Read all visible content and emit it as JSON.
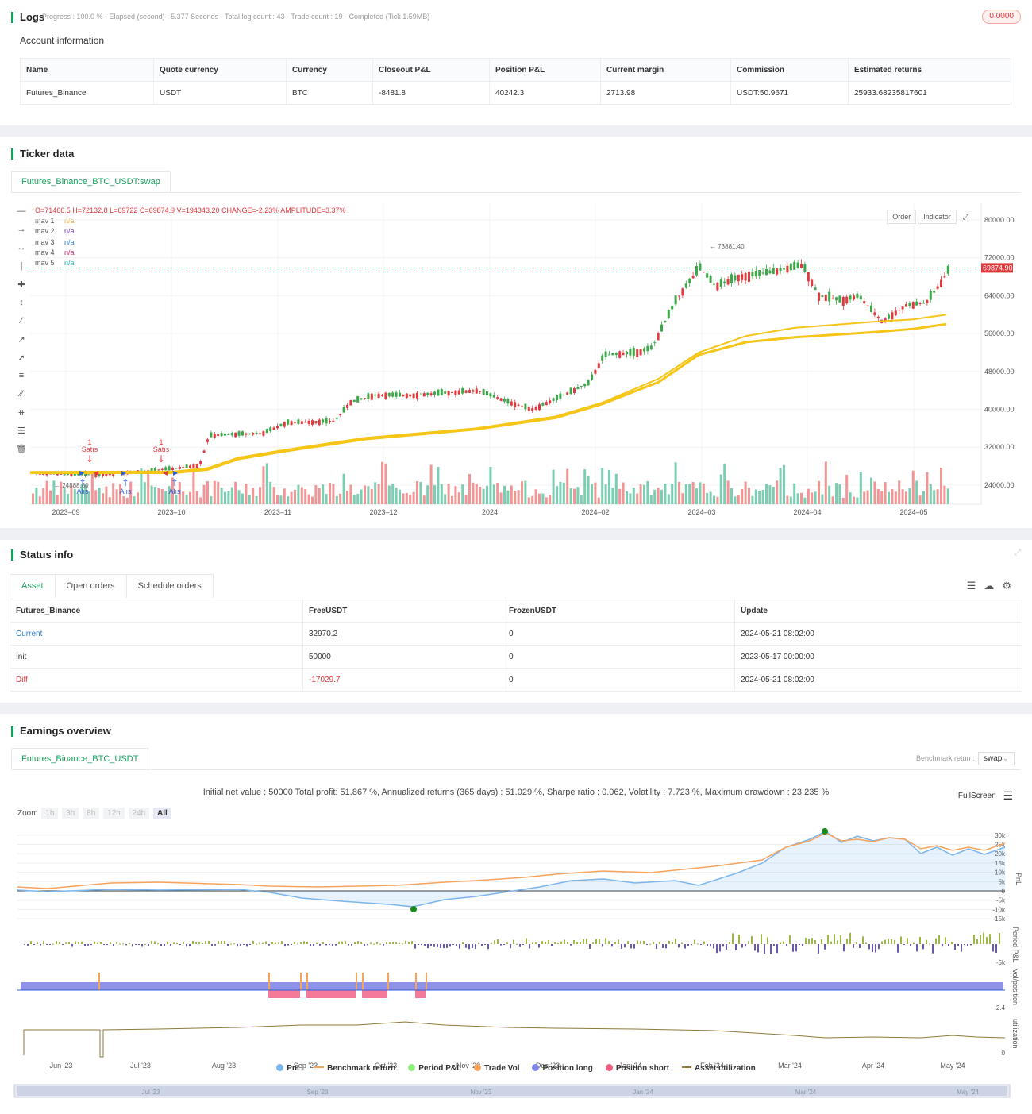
{
  "logs": {
    "title": "Logs",
    "progress": "Progress : 100.0 % - Elapsed (second) : 5.377  Seconds - Total log count : 43 - Trade count : 19 - Completed (Tick 1.59MB)",
    "badge": "0.0000",
    "account_title": "Account information",
    "columns": [
      "Name",
      "Quote currency",
      "Currency",
      "Closeout P&L",
      "Position P&L",
      "Current margin",
      "Commission",
      "Estimated returns"
    ],
    "row": [
      "Futures_Binance",
      "USDT",
      "BTC",
      "-8481.8",
      "40242.3",
      "2713.98",
      "USDT:50.9671",
      "25933.68235817601"
    ]
  },
  "ticker": {
    "title": "Ticker data",
    "tab": "Futures_Binance_BTC_USDT:swap",
    "ohlc": "O=71466.5 H=72132.8 L=69722 C=69874.9 V=194343.20 CHANGE=-2.23% AMPLITUDE=3.37%",
    "mav": [
      {
        "label": "mav 1",
        "value": "n/a",
        "color": "#f5a623"
      },
      {
        "label": "mav 2",
        "value": "n/a",
        "color": "#7b3fbf"
      },
      {
        "label": "mav 3",
        "value": "n/a",
        "color": "#2f7ed8"
      },
      {
        "label": "mav 4",
        "value": "n/a",
        "color": "#d6266c"
      },
      {
        "label": "mav 5",
        "value": "n/a",
        "color": "#22b5b5"
      }
    ],
    "buttons": [
      "Order",
      "Indicator"
    ],
    "price_ticks": [
      "80000.00",
      "72000.00",
      "64000.00",
      "56000.00",
      "48000.00",
      "40000.00",
      "32000.00",
      "24000.00"
    ],
    "date_ticks": [
      "2023–09",
      "2023–10",
      "2023–11",
      "2023–12",
      "2024",
      "2024–02",
      "2024–03",
      "2024–04",
      "2024–05"
    ],
    "last_price": "69874.90",
    "high_label": "73881.40",
    "low_label": "24888.80",
    "sell_label": "Satıs",
    "buy_label": "Alıs",
    "signal_count": "1"
  },
  "status": {
    "title": "Status info",
    "tabs": [
      "Asset",
      "Open orders",
      "Schedule orders"
    ],
    "columns": [
      "Futures_Binance",
      "FreeUSDT",
      "FrozenUSDT",
      "Update"
    ],
    "rows": [
      [
        "Current",
        "32970.2",
        "0",
        "2024-05-21 08:02:00"
      ],
      [
        "Init",
        "50000",
        "0",
        "2023-05-17 00:00:00"
      ],
      [
        "Diff",
        "-17029.7",
        "0",
        "2024-05-21 08:02:00"
      ]
    ]
  },
  "earnings": {
    "title": "Earnings overview",
    "tab": "Futures_Binance_BTC_USDT",
    "benchmark_label": "Benchmark return:",
    "benchmark_value": "swap",
    "summary": "Initial net value : 50000 Total profit: 51.867 %, Annualized returns (365 days) : 51.029 %, Sharpe ratio : 0.062, Volatility : 7.723 %, Maximum drawdown : 23.235 %",
    "zoom_label": "Zoom",
    "zoom_options": [
      "1h",
      "3h",
      "8h",
      "12h",
      "24h",
      "All"
    ],
    "fullscreen": "FullScreen",
    "pnl_ticks": [
      "30k",
      "25k",
      "20k",
      "15k",
      "10k",
      "5k",
      "0",
      "-5k",
      "-10k",
      "-15k"
    ],
    "period_tick": "-5k",
    "pos_tick": "-2.4",
    "util_tick": "0",
    "axis_titles": [
      "PnL",
      "Period P&L",
      "vol/position",
      "utilization"
    ],
    "months": [
      "Jun '23",
      "Jul '23",
      "Aug '23",
      "Sep '23",
      "Oct '23",
      "Nov '23",
      "Dec '23",
      "Jan '24",
      "Feb '24",
      "Mar '24",
      "Apr '24",
      "May '24"
    ],
    "nav_months": [
      "Jul '23",
      "Sep '23",
      "Nov '23",
      "Jan '24",
      "Mar '24",
      "May '24"
    ],
    "legend": [
      {
        "label": "PnL",
        "color": "#7cb5ec",
        "kind": "dot"
      },
      {
        "label": "Benchmark return",
        "color": "#f7a35c",
        "kind": "line"
      },
      {
        "label": "Period P&L",
        "color": "#90ed7d",
        "kind": "dot"
      },
      {
        "label": "Trade Vol",
        "color": "#f7a35c",
        "kind": "dot"
      },
      {
        "label": "Position long",
        "color": "#8085e9",
        "kind": "dot"
      },
      {
        "label": "Position short",
        "color": "#f15c80",
        "kind": "dot"
      },
      {
        "label": "Asset utilization",
        "color": "#8d7b3c",
        "kind": "line"
      }
    ]
  }
}
